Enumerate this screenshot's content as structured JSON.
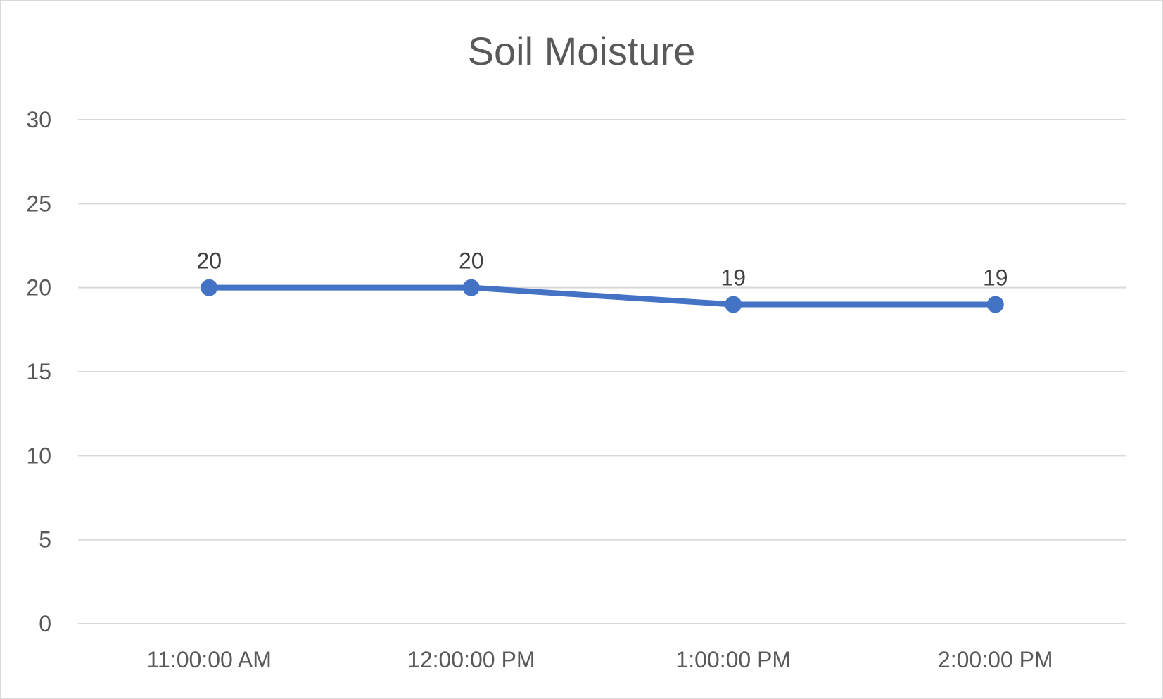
{
  "chart_data": {
    "type": "line",
    "title": "Soil Moisture",
    "xlabel": "",
    "ylabel": "",
    "categories": [
      "11:00:00 AM",
      "12:00:00 PM",
      "1:00:00 PM",
      "2:00:00 PM"
    ],
    "series": [
      {
        "values": [
          20,
          20,
          19,
          19
        ],
        "color": "#4472c4",
        "data_labels": [
          "20",
          "20",
          "19",
          "19"
        ]
      }
    ],
    "ylim": [
      0,
      30
    ],
    "yticks": [
      "0",
      "5",
      "10",
      "15",
      "20",
      "25",
      "30"
    ],
    "grid": true,
    "legend": "none",
    "gridline_color": "#d9d9d9"
  }
}
